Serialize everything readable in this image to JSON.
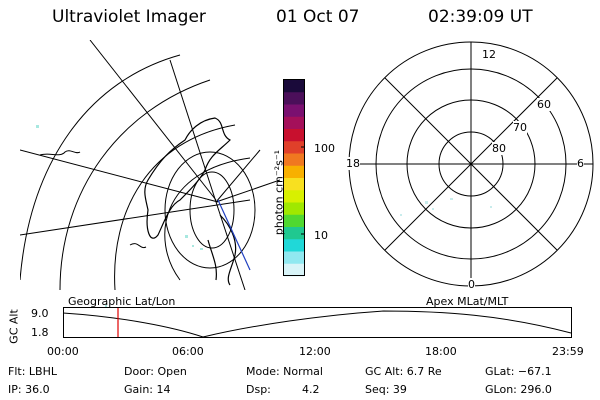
{
  "header": {
    "instrument": "Ultraviolet Imager",
    "date": "01 Oct 07",
    "time": "02:39:09 UT"
  },
  "colorbar": {
    "unit_label": "photon cm⁻²s⁻¹",
    "ticks": [
      "100",
      "10"
    ],
    "colors": [
      "#1a0a3a",
      "#4b0f5a",
      "#7a1070",
      "#a4105a",
      "#c8102e",
      "#e0402a",
      "#f07820",
      "#f8b000",
      "#f8e020",
      "#d8f000",
      "#a0e800",
      "#50d830",
      "#20c890",
      "#20d8d8",
      "#90e8f0",
      "#d8f4f8"
    ]
  },
  "polar_plot": {
    "mlt_labels": [
      "12",
      "18",
      "6",
      "0"
    ],
    "lat_labels": [
      "60",
      "70",
      "80"
    ]
  },
  "altitude_panel": {
    "y_axis_label": "GC Alt",
    "y_ticks": [
      "9.0",
      "1.8"
    ],
    "left_caption": "Geographic Lat/Lon",
    "right_caption": "Apex MLat/MLT",
    "x_ticks": [
      "00:00",
      "06:00",
      "12:00",
      "18:00",
      "23:59"
    ],
    "marker_color": "#e00000"
  },
  "info": {
    "row1": {
      "flt": "Flt: LBHL",
      "door": "Door: Open",
      "mode": "Mode: Normal",
      "gc_alt": "GC Alt: 6.7 Re",
      "glat": "GLat: −67.1"
    },
    "row2": {
      "ip": "IP: 36.0",
      "gain": "Gain: 14",
      "dsp_label": "Dsp:",
      "dsp_value": "4.2",
      "seq": "Seq: 39",
      "glon": "GLon: 296.0"
    }
  }
}
